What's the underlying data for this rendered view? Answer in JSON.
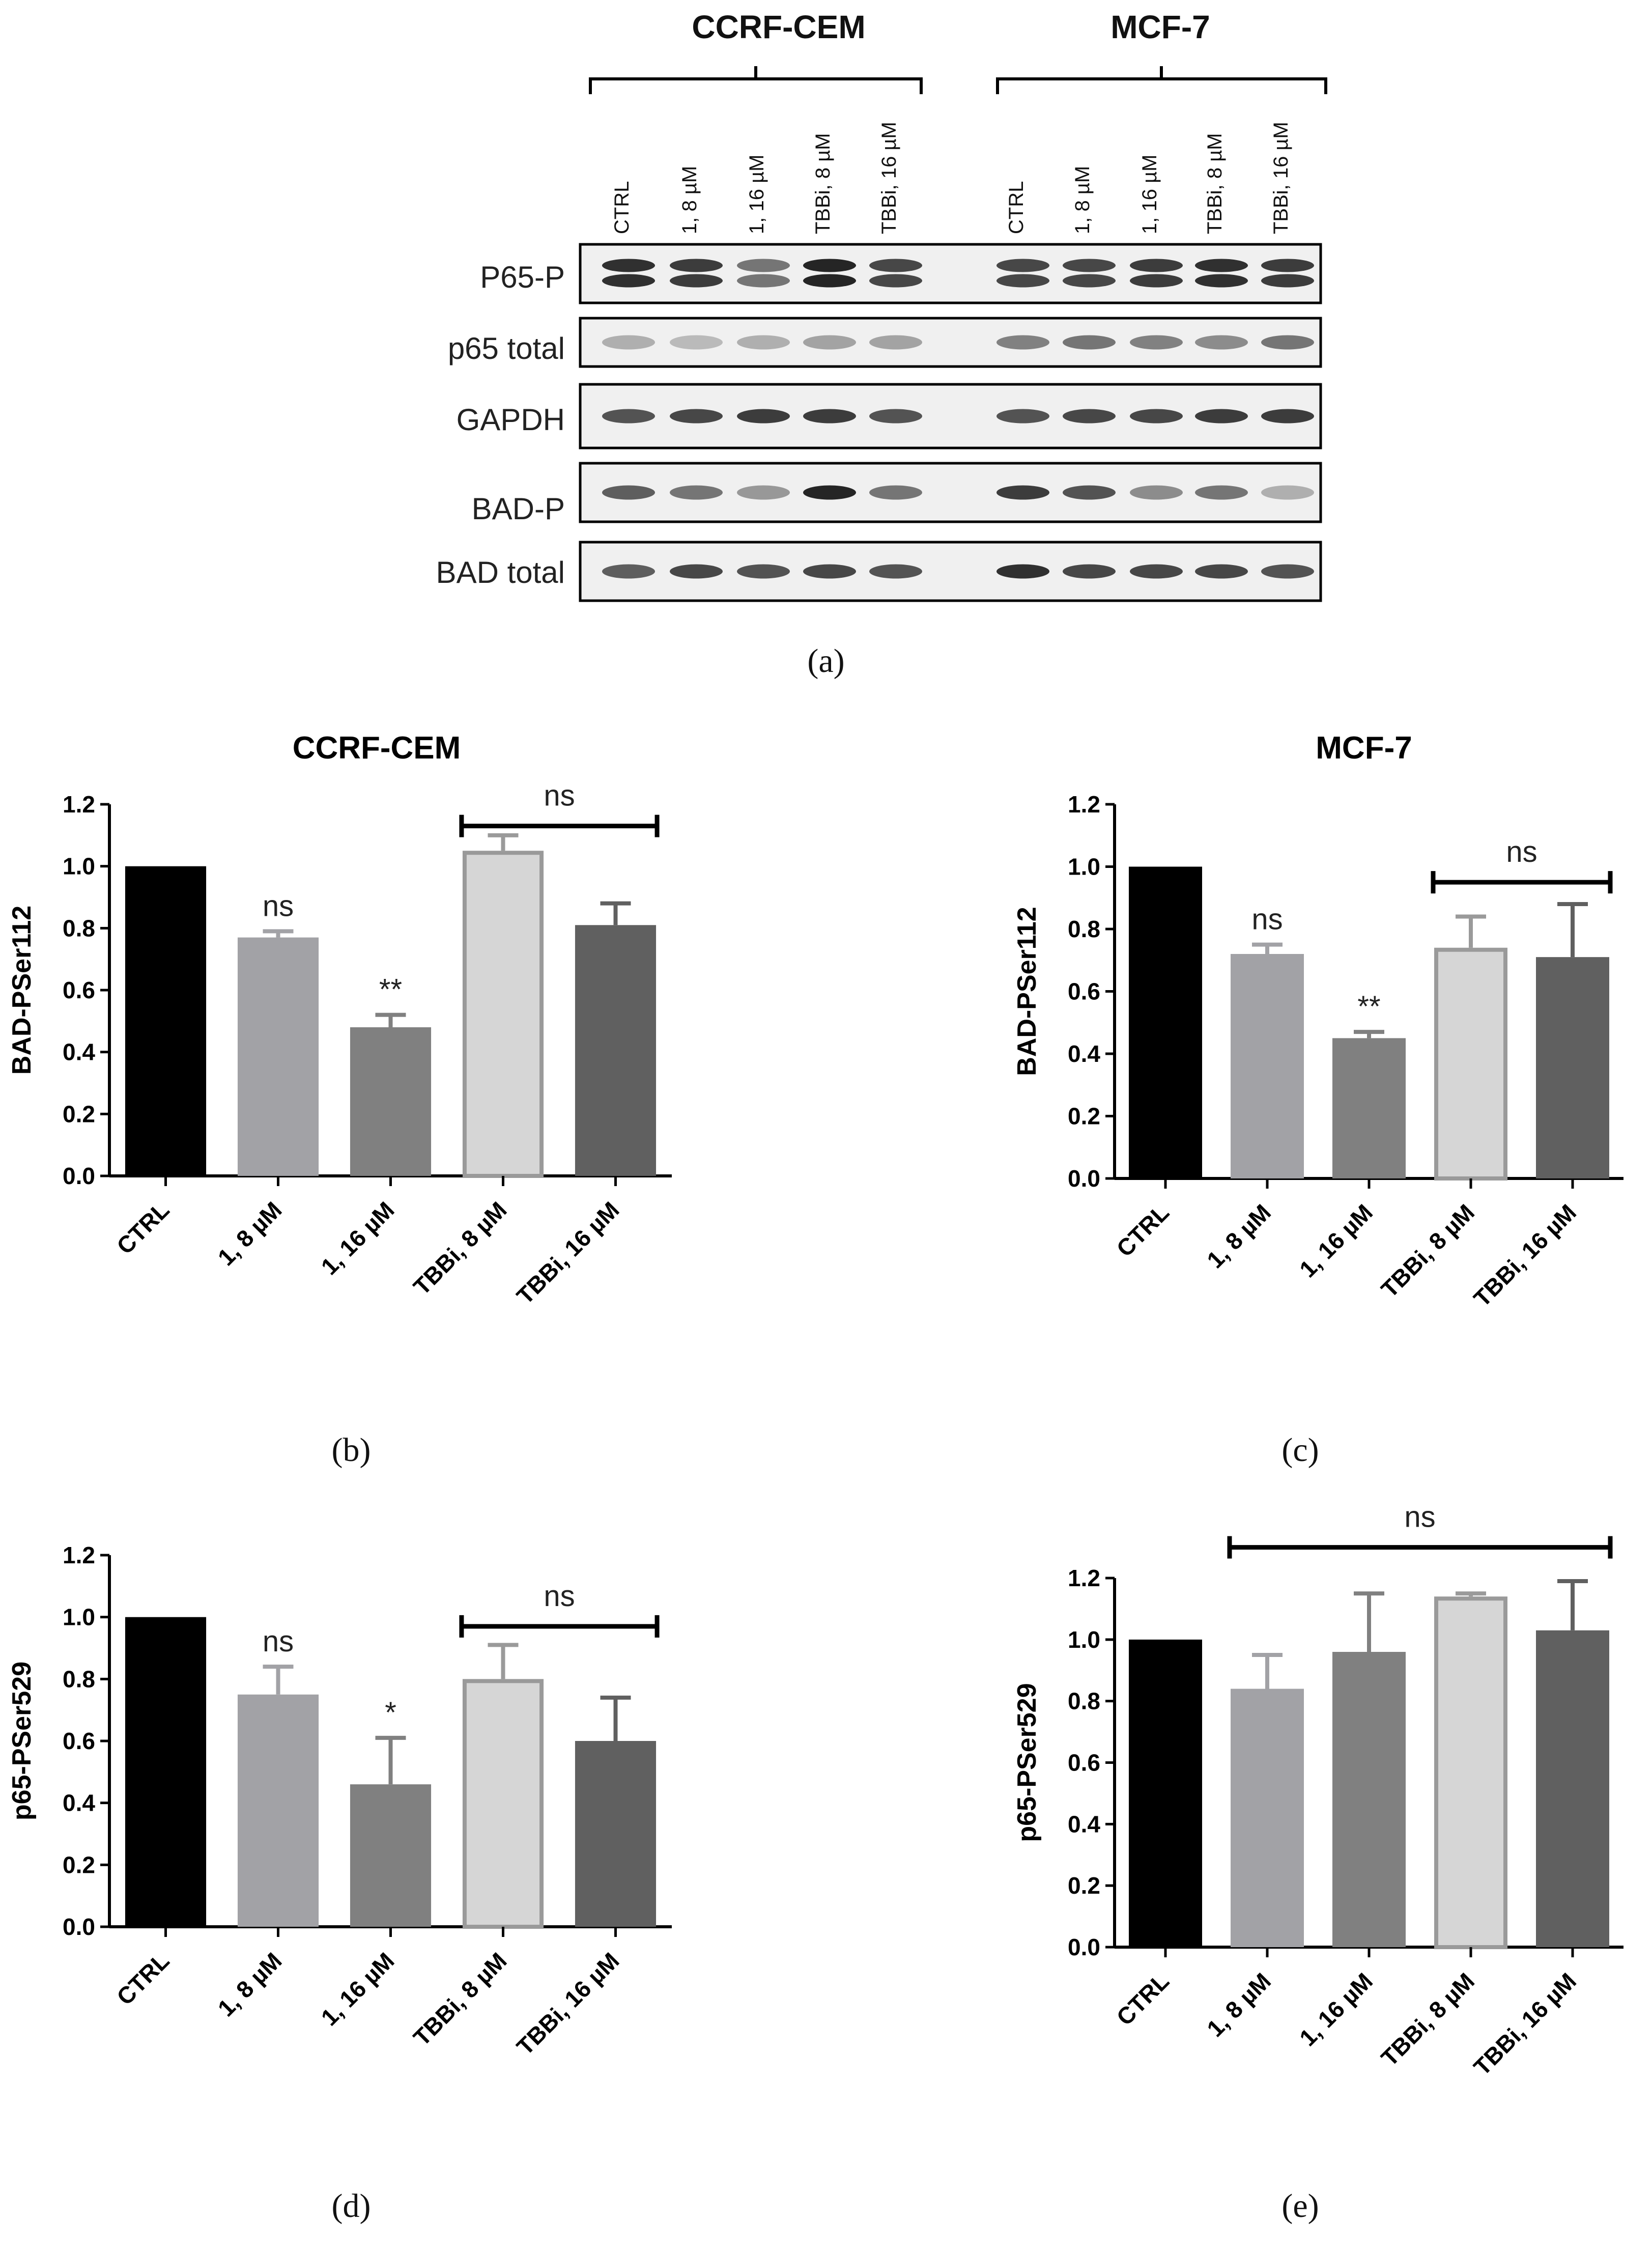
{
  "panel_a": {
    "label": "(a)",
    "groups": [
      {
        "name": "CCRF-CEM",
        "lanes": [
          "CTRL",
          "1, 8 µM",
          "1, 16 µM",
          "TBBi, 8 µM",
          "TBBi, 16 µM"
        ]
      },
      {
        "name": "MCF-7",
        "lanes": [
          "CTRL",
          "1, 8 µM",
          "1, 16 µM",
          "TBBi, 8 µM",
          "TBBi, 16 µM"
        ]
      }
    ],
    "rows": [
      "P65-P",
      "p65 total",
      "GAPDH",
      "BAD-P",
      "BAD total"
    ]
  },
  "chart_data": [
    {
      "panel": "(b)",
      "type": "bar",
      "title": "CCRF-CEM",
      "ylabel": "BAD-PSer112",
      "xlabel": "",
      "categories": [
        "CTRL",
        "1, 8 µM",
        "1, 16 µM",
        "TBBi, 8 µM",
        "TBBi, 16 µM"
      ],
      "values": [
        1.0,
        0.77,
        0.48,
        1.05,
        0.81
      ],
      "errors": [
        0,
        0.02,
        0.04,
        0.05,
        0.07
      ],
      "ylim": [
        0,
        1.2
      ],
      "yticks": [
        "0.0",
        "0.2",
        "0.4",
        "0.6",
        "0.8",
        "1.0",
        "1.2"
      ],
      "annotations": [
        "",
        "ns",
        "**",
        "",
        ""
      ],
      "bracket": {
        "from": 3,
        "to": 4,
        "label": "ns",
        "y": 1.13
      }
    },
    {
      "panel": "(c)",
      "type": "bar",
      "title": "MCF-7",
      "ylabel": "BAD-PSer112",
      "xlabel": "",
      "categories": [
        "CTRL",
        "1, 8 µM",
        "1, 16 µM",
        "TBBi, 8 µM",
        "TBBi, 16 µM"
      ],
      "values": [
        1.0,
        0.72,
        0.45,
        0.74,
        0.71
      ],
      "errors": [
        0,
        0.03,
        0.02,
        0.1,
        0.17
      ],
      "ylim": [
        0,
        1.2
      ],
      "yticks": [
        "0.0",
        "0.2",
        "0.4",
        "0.6",
        "0.8",
        "1.0",
        "1.2"
      ],
      "annotations": [
        "",
        "ns",
        "**",
        "",
        ""
      ],
      "bracket": {
        "from": 3,
        "to": 4,
        "label": "ns",
        "y": 0.95
      }
    },
    {
      "panel": "(d)",
      "type": "bar",
      "title": "",
      "ylabel": "p65-PSer529",
      "xlabel": "",
      "categories": [
        "CTRL",
        "1, 8 µM",
        "1, 16 µM",
        "TBBi, 8 µM",
        "TBBi, 16 µM"
      ],
      "values": [
        1.0,
        0.75,
        0.46,
        0.8,
        0.6
      ],
      "errors": [
        0,
        0.09,
        0.15,
        0.11,
        0.14
      ],
      "ylim": [
        0,
        1.2
      ],
      "yticks": [
        "0.0",
        "0.2",
        "0.4",
        "0.6",
        "0.8",
        "1.0",
        "1.2"
      ],
      "annotations": [
        "",
        "ns",
        "*",
        "",
        ""
      ],
      "bracket": {
        "from": 3,
        "to": 4,
        "label": "ns",
        "y": 0.97
      }
    },
    {
      "panel": "(e)",
      "type": "bar",
      "title": "",
      "ylabel": "p65-PSer529",
      "xlabel": "",
      "categories": [
        "CTRL",
        "1, 8 µM",
        "1, 16 µM",
        "TBBi, 8 µM",
        "TBBi, 16 µM"
      ],
      "values": [
        1.0,
        0.84,
        0.96,
        1.14,
        1.03
      ],
      "errors": [
        0,
        0.11,
        0.19,
        0.01,
        0.16
      ],
      "ylim": [
        0,
        1.2
      ],
      "yticks": [
        "0.0",
        "0.2",
        "0.4",
        "0.6",
        "0.8",
        "1.0",
        "1.2"
      ],
      "annotations": [
        "",
        "",
        "",
        "",
        ""
      ],
      "bracket": {
        "from": 1,
        "to": 4,
        "label": "ns",
        "y": 1.3
      }
    }
  ],
  "colors": {
    "bar_fills": [
      "#000000",
      "#a2a2a6",
      "#808080",
      "#d6d6d6",
      "#606060"
    ],
    "bar_strokes": [
      "#000000",
      "#a2a2a6",
      "#808080",
      "#9a9a9a",
      "#606060"
    ],
    "error_bar": [
      "#000000",
      "#a2a2a6",
      "#808080",
      "#9a9a9a",
      "#606060"
    ]
  }
}
